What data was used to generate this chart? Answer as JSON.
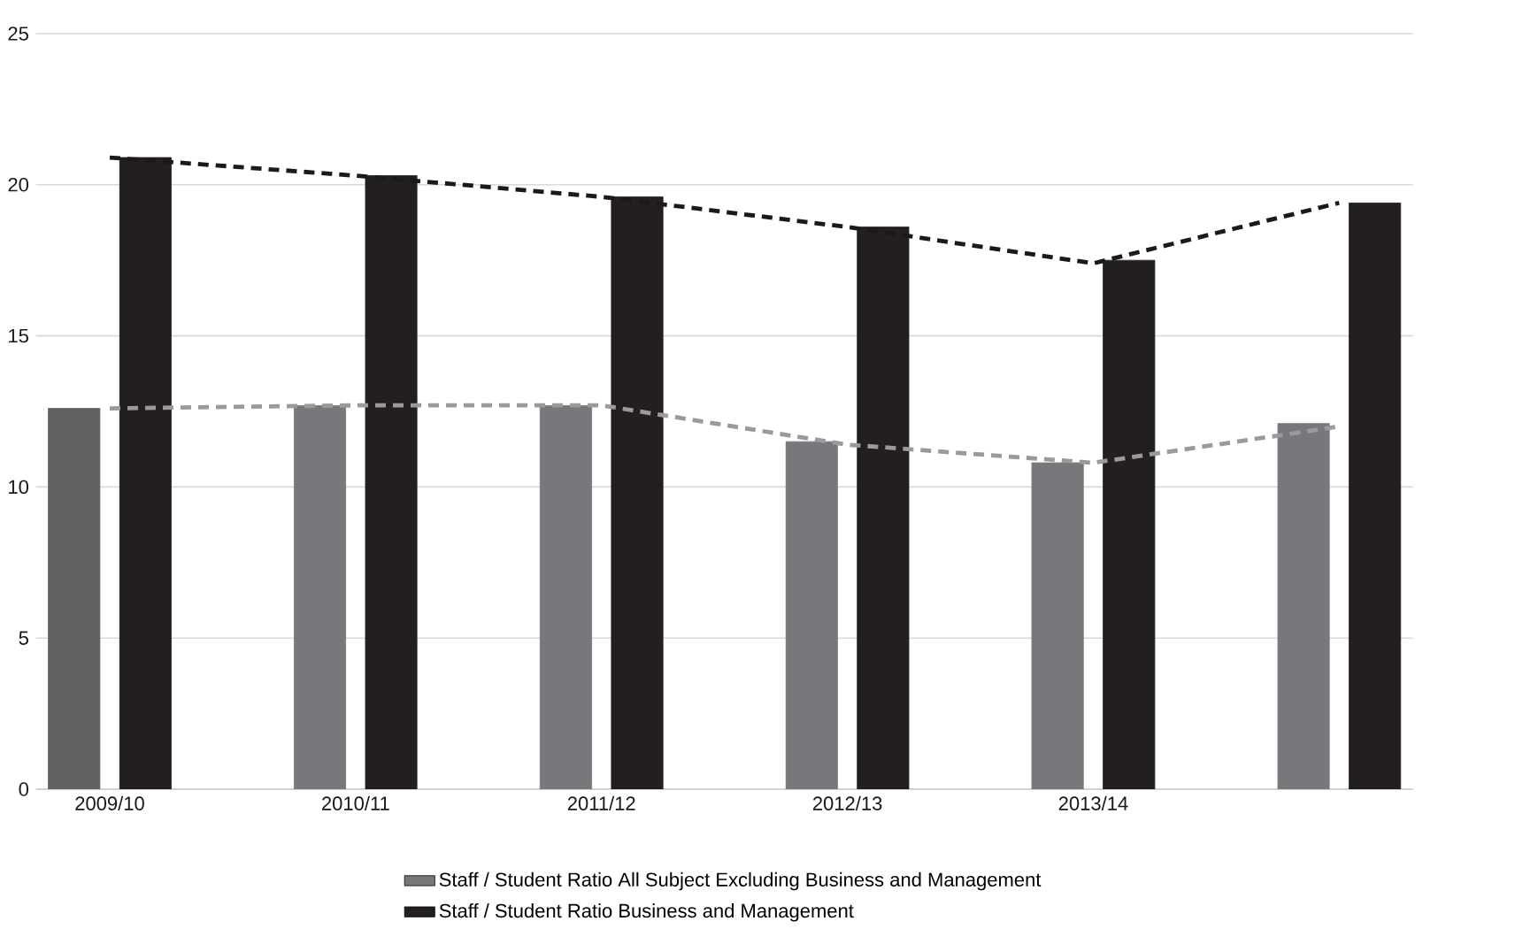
{
  "chart_data": {
    "type": "bar",
    "categories": [
      "2009/10",
      "2010/11",
      "2011/12",
      "2012/13",
      "2013/14",
      null
    ],
    "series": [
      {
        "name": "Staff / Student Ratio All Subject Excluding Business and Management",
        "color": "#77787b",
        "colors": [
          "#606060",
          "#77787b",
          "#77787b",
          "#77787b",
          "#77787b",
          "#77787b"
        ],
        "values": [
          12.6,
          12.7,
          12.7,
          11.5,
          10.8,
          12.1
        ]
      },
      {
        "name": "Staff / Student Ratio Business and Management",
        "color": "#231f20",
        "values": [
          20.9,
          20.3,
          19.6,
          18.6,
          17.5,
          19.4
        ]
      },
      {
        "type": "line",
        "color": "#999a9e",
        "line_style": "dashed",
        "values": [
          12.6,
          12.7,
          12.7,
          11.4,
          10.8,
          12.0
        ]
      },
      {
        "type": "line",
        "color": "#1a1a1a",
        "line_style": "dashed",
        "values": [
          20.9,
          20.3,
          19.6,
          18.6,
          17.4,
          19.4
        ]
      }
    ],
    "ylim": [
      0,
      25
    ],
    "yticks": [
      0,
      5,
      10,
      15,
      20,
      25
    ],
    "grid": "y",
    "legend": "bottom"
  }
}
